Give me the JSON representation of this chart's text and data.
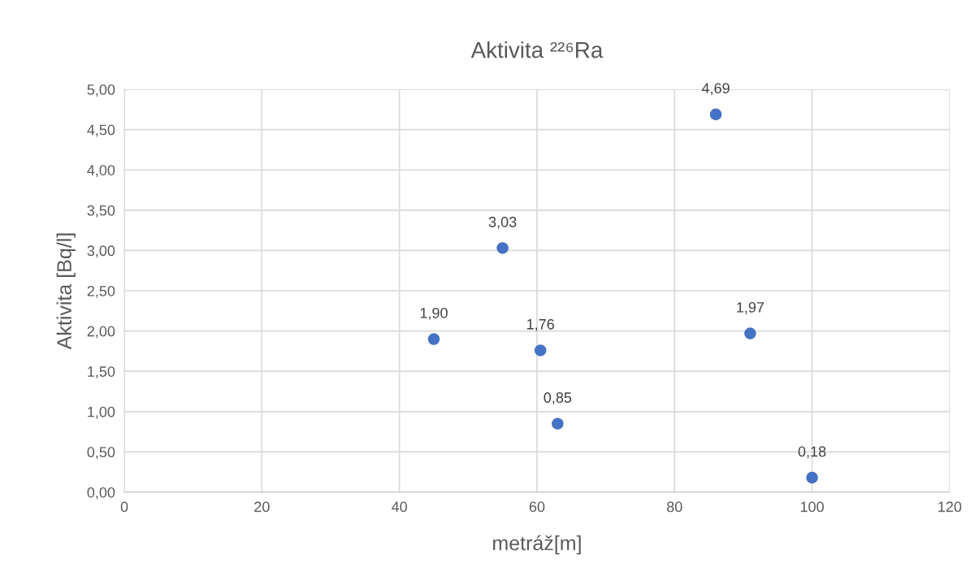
{
  "chart_data": {
    "type": "scatter",
    "title": "Aktivita ²²⁶Ra",
    "xlabel": "metráž[m]",
    "ylabel": "Aktivita [Bq/l]",
    "x": [
      45,
      55,
      60.5,
      63,
      86,
      91,
      100
    ],
    "series": [
      {
        "color": "#4472c4",
        "values": [
          1.9,
          3.03,
          1.76,
          0.85,
          4.69,
          1.97,
          0.18
        ],
        "value_labels": [
          "1,90",
          "3,03",
          "1,76",
          "0,85",
          "4,69",
          "1,97",
          "0,18"
        ]
      }
    ],
    "xlim": [
      0,
      120
    ],
    "xticks": [
      0,
      20,
      40,
      60,
      80,
      100,
      120
    ],
    "ylim": [
      0,
      5
    ],
    "yticks": [
      {
        "value": 0,
        "label": "0,00"
      },
      {
        "value": 0.5,
        "label": "0,50"
      },
      {
        "value": 1,
        "label": "1,00"
      },
      {
        "value": 1.5,
        "label": "1,50"
      },
      {
        "value": 2,
        "label": "2,00"
      },
      {
        "value": 2.5,
        "label": "2,50"
      },
      {
        "value": 3,
        "label": "3,00"
      },
      {
        "value": 3.5,
        "label": "3,50"
      },
      {
        "value": 4,
        "label": "4,00"
      },
      {
        "value": 4.5,
        "label": "4,50"
      },
      {
        "value": 5,
        "label": "5,00"
      }
    ],
    "grid": true,
    "marker": "circle"
  }
}
